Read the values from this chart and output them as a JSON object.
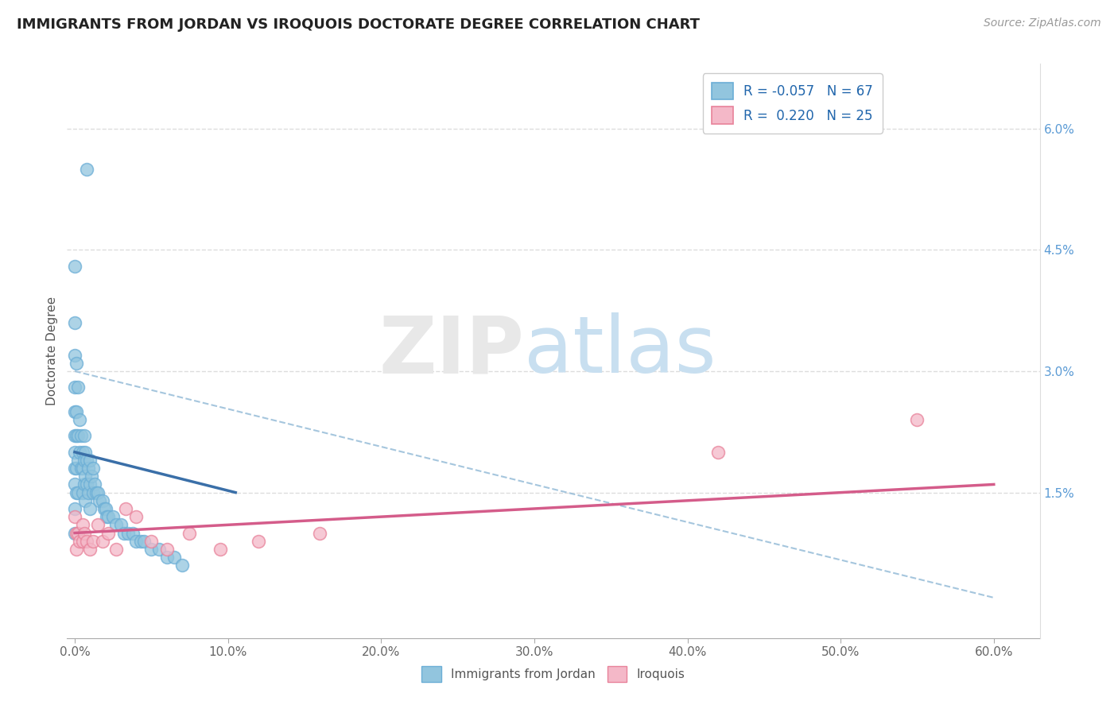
{
  "title": "IMMIGRANTS FROM JORDAN VS IROQUOIS DOCTORATE DEGREE CORRELATION CHART",
  "source": "Source: ZipAtlas.com",
  "ylabel_label": "Doctorate Degree",
  "legend_label1": "Immigrants from Jordan",
  "legend_label2": "Iroquois",
  "r1": -0.057,
  "n1": 67,
  "r2": 0.22,
  "n2": 25,
  "xlim": [
    -0.005,
    0.63
  ],
  "ylim": [
    -0.003,
    0.068
  ],
  "xticks": [
    0.0,
    0.1,
    0.2,
    0.3,
    0.4,
    0.5,
    0.6
  ],
  "xtick_labels": [
    "0.0%",
    "10.0%",
    "20.0%",
    "30.0%",
    "40.0%",
    "50.0%",
    "60.0%"
  ],
  "yticks_right": [
    0.015,
    0.03,
    0.045,
    0.06
  ],
  "ytick_labels_right": [
    "1.5%",
    "3.0%",
    "4.5%",
    "6.0%"
  ],
  "color_blue": "#92c5de",
  "color_blue_edge": "#6baed6",
  "color_blue_line": "#3a6fa8",
  "color_pink": "#f4b8c8",
  "color_pink_edge": "#e8829a",
  "color_pink_line": "#d45c8a",
  "color_dashed": "#96bcd8",
  "blue_scatter_x": [
    0.008,
    0.0,
    0.0,
    0.0,
    0.0,
    0.0,
    0.0,
    0.0,
    0.0,
    0.0,
    0.0,
    0.0,
    0.001,
    0.001,
    0.001,
    0.001,
    0.001,
    0.002,
    0.002,
    0.002,
    0.002,
    0.003,
    0.003,
    0.004,
    0.004,
    0.005,
    0.005,
    0.005,
    0.006,
    0.006,
    0.006,
    0.007,
    0.007,
    0.007,
    0.008,
    0.008,
    0.009,
    0.009,
    0.01,
    0.01,
    0.01,
    0.011,
    0.012,
    0.012,
    0.013,
    0.014,
    0.015,
    0.016,
    0.018,
    0.019,
    0.02,
    0.021,
    0.022,
    0.025,
    0.027,
    0.03,
    0.032,
    0.035,
    0.038,
    0.04,
    0.043,
    0.045,
    0.05,
    0.055,
    0.06,
    0.065,
    0.07
  ],
  "blue_scatter_y": [
    0.055,
    0.043,
    0.036,
    0.032,
    0.028,
    0.025,
    0.022,
    0.02,
    0.018,
    0.016,
    0.013,
    0.01,
    0.031,
    0.025,
    0.022,
    0.018,
    0.015,
    0.028,
    0.022,
    0.019,
    0.015,
    0.024,
    0.02,
    0.022,
    0.018,
    0.02,
    0.018,
    0.015,
    0.022,
    0.019,
    0.016,
    0.02,
    0.017,
    0.014,
    0.019,
    0.016,
    0.018,
    0.015,
    0.019,
    0.016,
    0.013,
    0.017,
    0.018,
    0.015,
    0.016,
    0.015,
    0.015,
    0.014,
    0.014,
    0.013,
    0.013,
    0.012,
    0.012,
    0.012,
    0.011,
    0.011,
    0.01,
    0.01,
    0.01,
    0.009,
    0.009,
    0.009,
    0.008,
    0.008,
    0.007,
    0.007,
    0.006
  ],
  "pink_scatter_x": [
    0.0,
    0.001,
    0.001,
    0.002,
    0.003,
    0.005,
    0.005,
    0.006,
    0.008,
    0.01,
    0.012,
    0.015,
    0.018,
    0.022,
    0.027,
    0.033,
    0.04,
    0.05,
    0.06,
    0.075,
    0.095,
    0.12,
    0.16,
    0.42,
    0.55
  ],
  "pink_scatter_y": [
    0.012,
    0.01,
    0.008,
    0.01,
    0.009,
    0.011,
    0.009,
    0.01,
    0.009,
    0.008,
    0.009,
    0.011,
    0.009,
    0.01,
    0.008,
    0.013,
    0.012,
    0.009,
    0.008,
    0.01,
    0.008,
    0.009,
    0.01,
    0.02,
    0.024
  ],
  "blue_line_x": [
    0.0,
    0.105
  ],
  "blue_line_y": [
    0.02,
    0.015
  ],
  "pink_line_x": [
    0.0,
    0.6
  ],
  "pink_line_y": [
    0.01,
    0.016
  ],
  "dash_line_x": [
    0.0,
    0.6
  ],
  "dash_line_y": [
    0.03,
    0.002
  ]
}
